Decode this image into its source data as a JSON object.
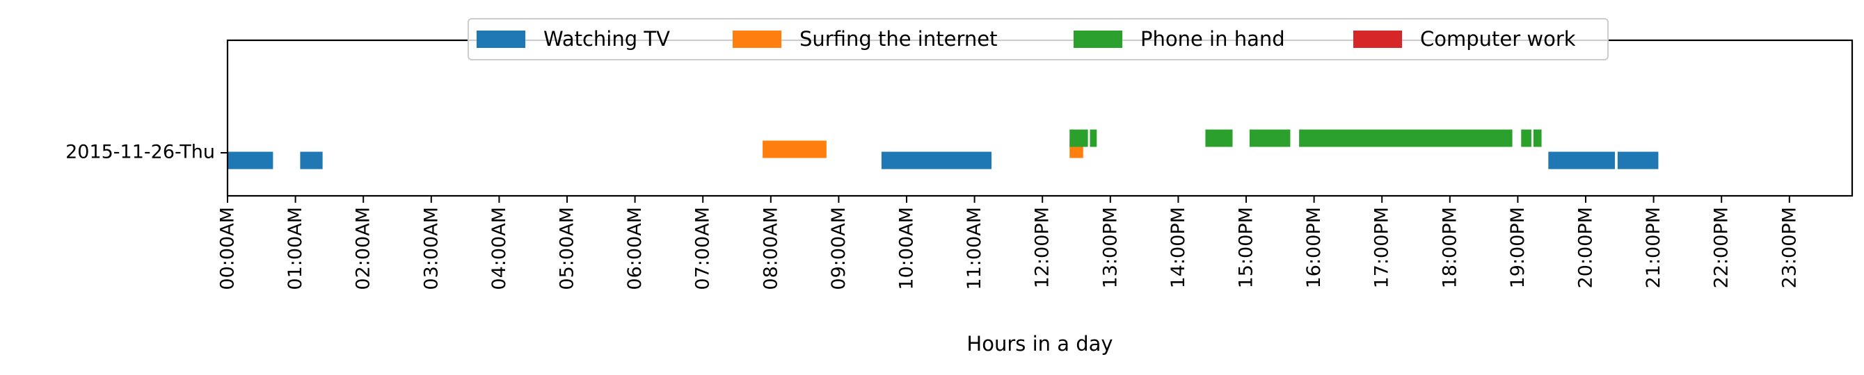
{
  "chart_data": {
    "type": "timeline",
    "xlabel": "Hours in a day",
    "ylabel": "",
    "xlim": [
      0,
      24
    ],
    "row_label": "2015-11-26-Thu",
    "grid": false,
    "legend_position": "top-center",
    "x_ticks": [
      "00:00AM",
      "01:00AM",
      "02:00AM",
      "03:00AM",
      "04:00AM",
      "05:00AM",
      "06:00AM",
      "07:00AM",
      "08:00AM",
      "09:00AM",
      "10:00AM",
      "11:00AM",
      "12:00PM",
      "13:00PM",
      "14:00PM",
      "15:00PM",
      "16:00PM",
      "17:00PM",
      "18:00PM",
      "19:00PM",
      "20:00PM",
      "21:00PM",
      "22:00PM",
      "23:00PM"
    ],
    "series": [
      {
        "name": "Watching TV",
        "color": "#1f77b4",
        "intervals": [
          [
            0.0,
            0.67
          ],
          [
            1.07,
            1.4
          ],
          [
            9.63,
            11.25
          ],
          [
            19.45,
            20.43
          ],
          [
            20.47,
            21.07
          ]
        ]
      },
      {
        "name": "Surfing the internet",
        "color": "#ff7f0e",
        "intervals": [
          [
            7.88,
            8.82
          ],
          [
            12.4,
            12.6
          ]
        ]
      },
      {
        "name": "Phone in hand",
        "color": "#2ca02c",
        "intervals": [
          [
            12.4,
            12.67
          ],
          [
            12.7,
            12.8
          ],
          [
            14.4,
            14.8
          ],
          [
            15.05,
            15.65
          ],
          [
            15.78,
            18.92
          ],
          [
            19.05,
            19.2
          ],
          [
            19.23,
            19.35
          ]
        ]
      },
      {
        "name": "Computer work",
        "color": "#d62728",
        "intervals": []
      }
    ]
  }
}
